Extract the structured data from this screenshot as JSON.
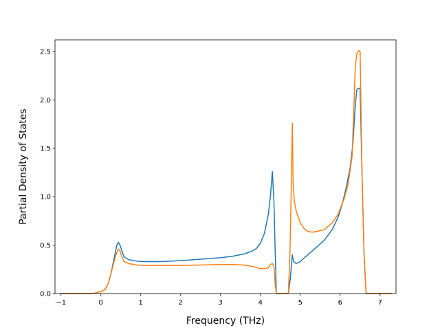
{
  "chart_data": {
    "type": "line",
    "title": "",
    "xlabel": "Frequency (THz)",
    "ylabel": "Partial Density of States",
    "xlim": [
      -1.15,
      7.4
    ],
    "ylim": [
      0,
      2.62
    ],
    "xticks": [
      -1,
      0,
      1,
      2,
      3,
      4,
      5,
      6,
      7
    ],
    "yticks": [
      0.0,
      0.5,
      1.0,
      1.5,
      2.0,
      2.5
    ],
    "xtick_labels": [
      "−1",
      "0",
      "1",
      "2",
      "3",
      "4",
      "5",
      "6",
      "7"
    ],
    "ytick_labels": [
      "0.0",
      "0.5",
      "1.0",
      "1.5",
      "2.0",
      "2.5"
    ],
    "grid": false,
    "legend": "none",
    "series": [
      {
        "color": "#1f77b4",
        "x": [
          -1.0,
          -0.5,
          -0.2,
          0.0,
          0.1,
          0.18,
          0.25,
          0.3,
          0.35,
          0.4,
          0.44,
          0.48,
          0.52,
          0.58,
          0.7,
          0.9,
          1.1,
          1.5,
          2.0,
          2.5,
          3.0,
          3.3,
          3.6,
          3.8,
          3.9,
          4.0,
          4.1,
          4.2,
          4.25,
          4.3,
          4.34,
          4.37,
          4.4,
          4.42,
          4.5,
          4.7,
          4.75,
          4.8,
          4.83,
          4.9,
          5.0,
          5.1,
          5.3,
          5.6,
          5.8,
          5.95,
          6.05,
          6.15,
          6.25,
          6.32,
          6.38,
          6.42,
          6.47,
          6.5,
          6.55,
          6.6,
          6.65,
          7.0,
          7.3
        ],
        "values": [
          0.0,
          0.0,
          0.0,
          0.02,
          0.04,
          0.1,
          0.2,
          0.3,
          0.4,
          0.5,
          0.53,
          0.5,
          0.45,
          0.38,
          0.35,
          0.335,
          0.33,
          0.33,
          0.34,
          0.355,
          0.37,
          0.385,
          0.41,
          0.44,
          0.465,
          0.52,
          0.62,
          0.82,
          1.0,
          1.26,
          0.95,
          0.45,
          0.0,
          0.0,
          0.0,
          0.0,
          0.15,
          0.4,
          0.33,
          0.31,
          0.33,
          0.37,
          0.44,
          0.55,
          0.66,
          0.79,
          0.92,
          1.09,
          1.3,
          1.55,
          1.95,
          2.11,
          2.12,
          2.12,
          1.2,
          0.4,
          0.0,
          0.0,
          0.0
        ]
      },
      {
        "color": "#ff7f0e",
        "x": [
          -1.0,
          -0.5,
          -0.2,
          0.0,
          0.1,
          0.18,
          0.25,
          0.3,
          0.35,
          0.4,
          0.44,
          0.48,
          0.52,
          0.58,
          0.7,
          0.9,
          1.1,
          1.5,
          2.0,
          2.5,
          3.0,
          3.3,
          3.6,
          3.8,
          3.9,
          4.0,
          4.1,
          4.2,
          4.25,
          4.3,
          4.34,
          4.37,
          4.4,
          4.42,
          4.5,
          4.7,
          4.74,
          4.77,
          4.8,
          4.82,
          4.85,
          4.9,
          5.0,
          5.1,
          5.2,
          5.3,
          5.4,
          5.6,
          5.8,
          5.95,
          6.1,
          6.2,
          6.3,
          6.38,
          6.42,
          6.47,
          6.5,
          6.55,
          6.6,
          6.65,
          7.0,
          7.3
        ],
        "values": [
          0.0,
          0.0,
          0.0,
          0.02,
          0.04,
          0.1,
          0.2,
          0.28,
          0.36,
          0.43,
          0.46,
          0.44,
          0.39,
          0.33,
          0.31,
          0.295,
          0.29,
          0.29,
          0.29,
          0.295,
          0.3,
          0.3,
          0.295,
          0.28,
          0.27,
          0.255,
          0.26,
          0.265,
          0.3,
          0.31,
          0.28,
          0.1,
          0.0,
          0.0,
          0.0,
          0.0,
          0.4,
          1.0,
          1.76,
          1.15,
          0.95,
          0.85,
          0.73,
          0.67,
          0.64,
          0.635,
          0.64,
          0.66,
          0.73,
          0.82,
          0.98,
          1.13,
          1.42,
          2.35,
          2.48,
          2.51,
          2.5,
          1.2,
          0.4,
          0.0,
          0.0,
          0.0
        ]
      }
    ]
  }
}
